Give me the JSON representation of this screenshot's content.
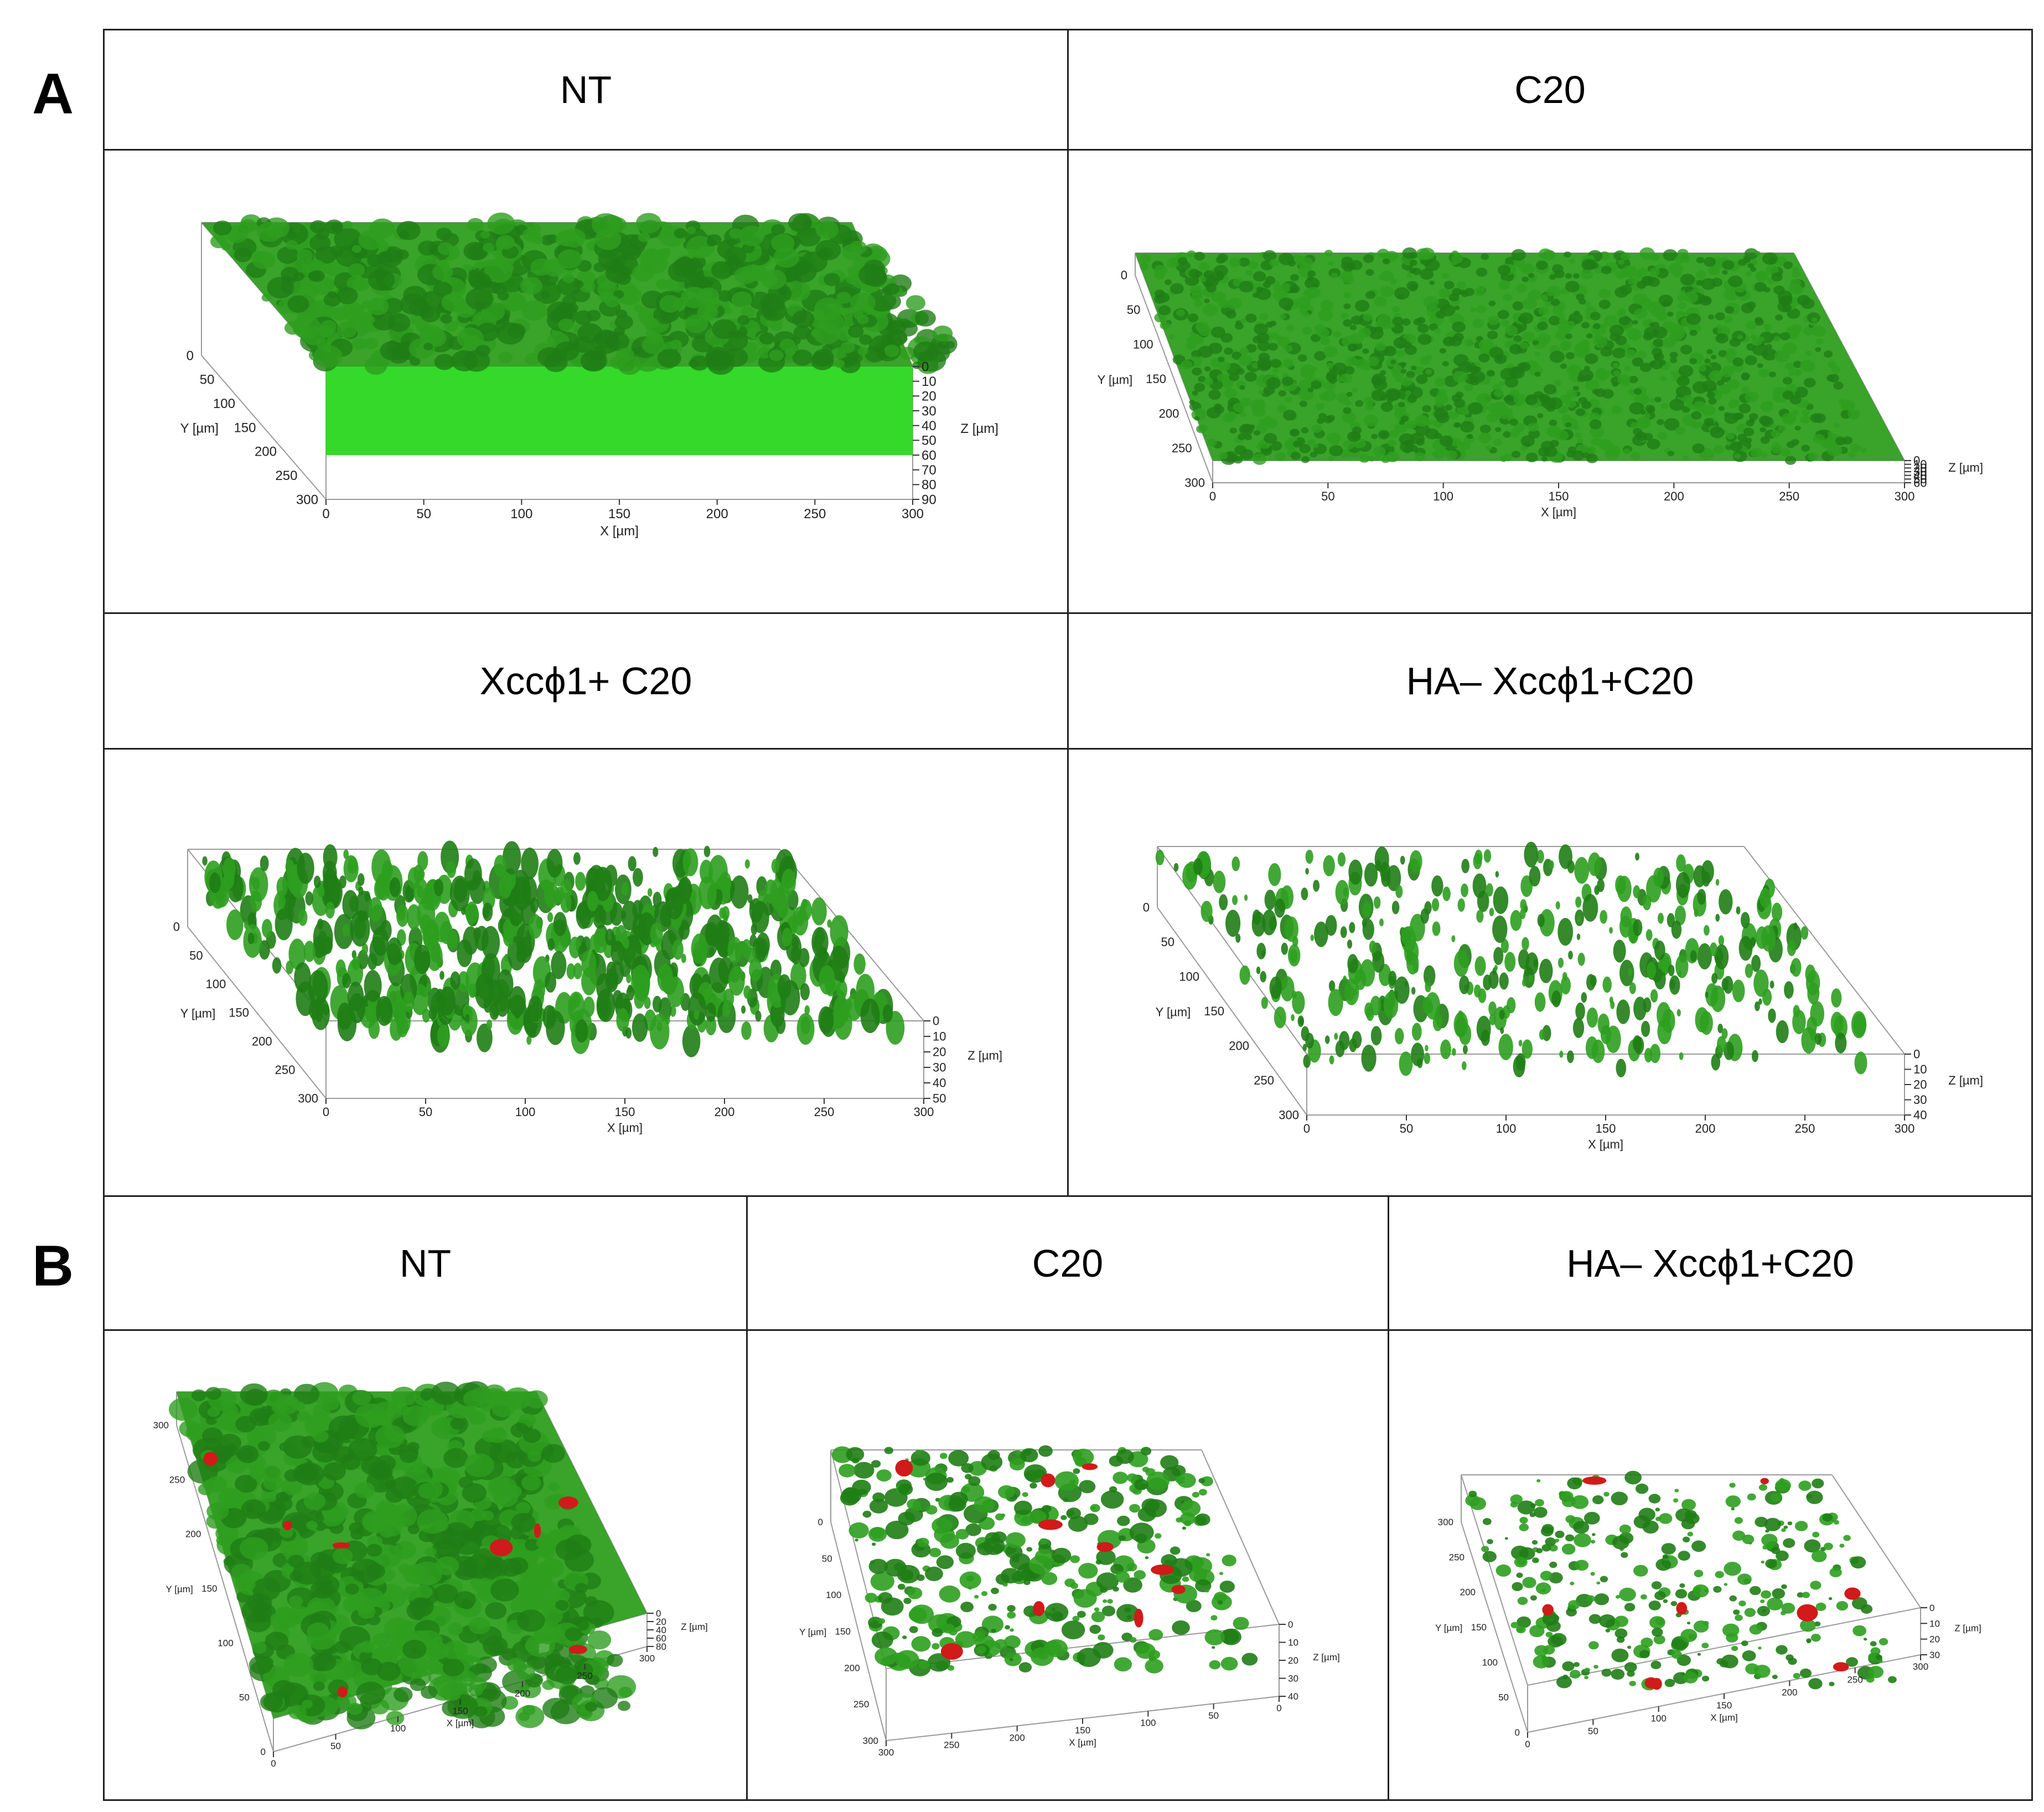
{
  "panels": {
    "a": {
      "letter": "A",
      "cells": [
        {
          "label": "NT",
          "ticks": {
            "x": [
              "0",
              "50",
              "100",
              "150",
              "200",
              "250",
              "300"
            ],
            "y": [
              "0",
              "50",
              "100",
              "150",
              "200",
              "250",
              "300"
            ],
            "z": [
              "0",
              "10",
              "20",
              "30",
              "40",
              "50",
              "60",
              "70",
              "80",
              "90"
            ]
          },
          "axis": {
            "x": "X [µm]",
            "y": "Y [µm]",
            "z": "Z [µm]"
          }
        },
        {
          "label": "C20",
          "ticks": {
            "x": [
              "0",
              "50",
              "100",
              "150",
              "200",
              "250",
              "300"
            ],
            "y": [
              "0",
              "50",
              "100",
              "150",
              "200",
              "250",
              "300"
            ],
            "z": [
              "0",
              "10",
              "20",
              "30",
              "40",
              "50",
              "60"
            ]
          },
          "axis": {
            "x": "X [µm]",
            "y": "Y [µm]",
            "z": "Z [µm]"
          }
        },
        {
          "label": "Xccϕ1+ C20",
          "ticks": {
            "x": [
              "0",
              "50",
              "100",
              "150",
              "200",
              "250",
              "300"
            ],
            "y": [
              "0",
              "50",
              "100",
              "150",
              "200",
              "250",
              "300"
            ],
            "z": [
              "0",
              "10",
              "20",
              "30",
              "40",
              "50"
            ]
          },
          "axis": {
            "x": "X [µm]",
            "y": "Y [µm]",
            "z": "Z [µm]"
          }
        },
        {
          "label": "HA– Xccϕ1+C20",
          "ticks": {
            "x": [
              "0",
              "50",
              "100",
              "150",
              "200",
              "250",
              "300"
            ],
            "y": [
              "0",
              "50",
              "100",
              "150",
              "200",
              "250",
              "300"
            ],
            "z": [
              "0",
              "10",
              "20",
              "30",
              "40"
            ]
          },
          "axis": {
            "x": "X [µm]",
            "y": "Y [µm]",
            "z": "Z [µm]"
          }
        }
      ]
    },
    "b": {
      "letter": "B",
      "cells": [
        {
          "label": "NT",
          "ticks": {
            "x": [
              "0",
              "50",
              "100",
              "150",
              "200",
              "250",
              "300"
            ],
            "y": [
              "300",
              "250",
              "200",
              "150",
              "100",
              "50",
              "0"
            ],
            "z": [
              "0",
              "20",
              "40",
              "60",
              "80"
            ]
          },
          "axis": {
            "x": "X [µm]",
            "y": "Y [µm]",
            "z": "Z [µm]"
          }
        },
        {
          "label": "C20",
          "ticks": {
            "x": [
              "300",
              "250",
              "200",
              "150",
              "100",
              "50",
              "0"
            ],
            "y": [
              "0",
              "50",
              "100",
              "150",
              "200",
              "250",
              "300"
            ],
            "z": [
              "0",
              "10",
              "20",
              "30",
              "40"
            ]
          },
          "axis": {
            "x": "X [µm]",
            "y": "Y [µm]",
            "z": "Z [µm]"
          }
        },
        {
          "label": "HA– Xccϕ1+C20",
          "ticks": {
            "x": [
              "0",
              "50",
              "100",
              "150",
              "200",
              "250",
              "300"
            ],
            "y": [
              "300",
              "250",
              "200",
              "150",
              "100",
              "50",
              "0"
            ],
            "z": [
              "0",
              "10",
              "20",
              "30"
            ]
          },
          "axis": {
            "x": "X [µm]",
            "y": "Y [µm]",
            "z": "Z [µm]"
          }
        }
      ]
    }
  },
  "colors": {
    "biofilm_green": "#2e9e1f",
    "biofilm_light": "#34d92a",
    "dead_red": "#d11a1a"
  }
}
